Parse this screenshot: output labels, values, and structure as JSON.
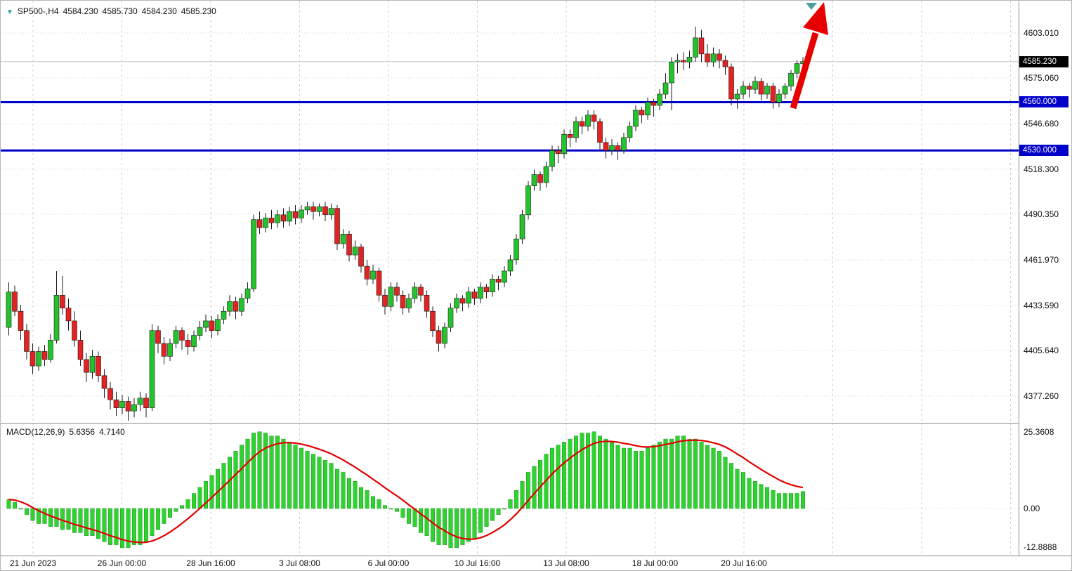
{
  "header": {
    "symbol": "SP500-,H4",
    "open": "4584.230",
    "high": "4585.730",
    "low": "4584.230",
    "close": "4585.230"
  },
  "price_scale": {
    "tick_labels": [
      "4603.010",
      "4575.060",
      "4546.680",
      "4518.300",
      "4490.350",
      "4461.970",
      "4433.590",
      "4405.640",
      "4377.260"
    ],
    "current_price_label": "4585.230",
    "level_labels": [
      "4560.000",
      "4530.000"
    ]
  },
  "macd_panel": {
    "label": "MACD(12,26,9)",
    "macd_value": "5.6356",
    "signal_value": "4.7140",
    "scale_ticks": [
      "25.3608",
      "0.00",
      "-12.8888"
    ]
  },
  "time_axis": {
    "labels": [
      "21 Jun 2023",
      "26 Jun 00:00",
      "28 Jun 16:00",
      "3 Jul 08:00",
      "6 Jul 00:00",
      "10 Jul 16:00",
      "13 Jul 08:00",
      "18 Jul 00:00",
      "20 Jul 16:00"
    ]
  },
  "colors": {
    "bull": "#25c32b",
    "bear": "#e32222",
    "candle_outline": "#1a1a1a",
    "macd_hist": "#2fd32f",
    "macd_hist_outline": "#1d9422",
    "signal_line": "#e00000",
    "level_line": "#0000c8",
    "level_box_bg": "#0000c8",
    "current_box_bg": "#000000",
    "arrow": "#e60000",
    "marker_triangle": "#4aa0a0",
    "grid": "#cfcfcf",
    "current_price_line": "#c8c8c8"
  },
  "chart_data": {
    "type": "candlestick",
    "title": "SP500-,H4",
    "ohlc_display": [
      4584.23,
      4585.73,
      4584.23,
      4585.23
    ],
    "x_labels": [
      "21 Jun 2023",
      "26 Jun 00:00",
      "28 Jun 16:00",
      "3 Jul 08:00",
      "6 Jul 00:00",
      "10 Jul 16:00",
      "13 Jul 08:00",
      "18 Jul 00:00",
      "20 Jul 16:00"
    ],
    "y_ticks": [
      4603.01,
      4575.06,
      4546.68,
      4518.3,
      4490.35,
      4461.97,
      4433.59,
      4405.64,
      4377.26
    ],
    "levels": [
      4560.0,
      4530.0
    ],
    "current_price": 4585.23,
    "candles_ohlc": [
      [
        4420,
        4448,
        4415,
        4442
      ],
      [
        4442,
        4446,
        4427,
        4430
      ],
      [
        4430,
        4434,
        4412,
        4418
      ],
      [
        4418,
        4422,
        4400,
        4405
      ],
      [
        4405,
        4410,
        4391,
        4396
      ],
      [
        4396,
        4408,
        4393,
        4405
      ],
      [
        4405,
        4409,
        4396,
        4400
      ],
      [
        4400,
        4416,
        4398,
        4412
      ],
      [
        4412,
        4455,
        4410,
        4440
      ],
      [
        4440,
        4452,
        4428,
        4432
      ],
      [
        4432,
        4438,
        4418,
        4424
      ],
      [
        4424,
        4430,
        4408,
        4412
      ],
      [
        4412,
        4418,
        4396,
        4400
      ],
      [
        4400,
        4404,
        4386,
        4392
      ],
      [
        4392,
        4406,
        4388,
        4402
      ],
      [
        4402,
        4405,
        4386,
        4390
      ],
      [
        4390,
        4394,
        4376,
        4382
      ],
      [
        4382,
        4386,
        4369,
        4375
      ],
      [
        4375,
        4380,
        4365,
        4370
      ],
      [
        4370,
        4378,
        4366,
        4374
      ],
      [
        4374,
        4377,
        4362,
        4368
      ],
      [
        4368,
        4376,
        4364,
        4372
      ],
      [
        4372,
        4380,
        4368,
        4376
      ],
      [
        4376,
        4379,
        4364,
        4370
      ],
      [
        4370,
        4422,
        4368,
        4418
      ],
      [
        4418,
        4421,
        4404,
        4410
      ],
      [
        4410,
        4414,
        4397,
        4402
      ],
      [
        4402,
        4413,
        4399,
        4410
      ],
      [
        4410,
        4421,
        4407,
        4418
      ],
      [
        4418,
        4420,
        4406,
        4412
      ],
      [
        4412,
        4416,
        4403,
        4408
      ],
      [
        4408,
        4418,
        4405,
        4415
      ],
      [
        4415,
        4424,
        4412,
        4420
      ],
      [
        4420,
        4428,
        4417,
        4424
      ],
      [
        4424,
        4427,
        4413,
        4418
      ],
      [
        4418,
        4428,
        4415,
        4425
      ],
      [
        4425,
        4433,
        4422,
        4430
      ],
      [
        4430,
        4440,
        4427,
        4436
      ],
      [
        4436,
        4439,
        4425,
        4430
      ],
      [
        4430,
        4441,
        4427,
        4438
      ],
      [
        4438,
        4448,
        4435,
        4444
      ],
      [
        4444,
        4490,
        4442,
        4487
      ],
      [
        4487,
        4492,
        4478,
        4482
      ],
      [
        4482,
        4491,
        4479,
        4488
      ],
      [
        4488,
        4493,
        4481,
        4485
      ],
      [
        4485,
        4493,
        4482,
        4490
      ],
      [
        4490,
        4494,
        4482,
        4486
      ],
      [
        4486,
        4495,
        4483,
        4492
      ],
      [
        4492,
        4496,
        4484,
        4488
      ],
      [
        4488,
        4496,
        4485,
        4493
      ],
      [
        4493,
        4498,
        4490,
        4495
      ],
      [
        4495,
        4498,
        4487,
        4492
      ],
      [
        4492,
        4497,
        4489,
        4495
      ],
      [
        4495,
        4498,
        4486,
        4490
      ],
      [
        4490,
        4497,
        4487,
        4494
      ],
      [
        4494,
        4496,
        4468,
        4472
      ],
      [
        4472,
        4481,
        4469,
        4478
      ],
      [
        4478,
        4480,
        4461,
        4465
      ],
      [
        4465,
        4474,
        4462,
        4470
      ],
      [
        4470,
        4472,
        4454,
        4458
      ],
      [
        4458,
        4462,
        4446,
        4450
      ],
      [
        4450,
        4459,
        4447,
        4455
      ],
      [
        4455,
        4457,
        4436,
        4440
      ],
      [
        4440,
        4444,
        4428,
        4433
      ],
      [
        4433,
        4448,
        4430,
        4445
      ],
      [
        4445,
        4448,
        4436,
        4440
      ],
      [
        4440,
        4443,
        4428,
        4432
      ],
      [
        4432,
        4441,
        4429,
        4438
      ],
      [
        4438,
        4448,
        4435,
        4445
      ],
      [
        4445,
        4447,
        4436,
        4440
      ],
      [
        4440,
        4443,
        4426,
        4430
      ],
      [
        4430,
        4433,
        4414,
        4418
      ],
      [
        4418,
        4421,
        4405,
        4410
      ],
      [
        4410,
        4423,
        4407,
        4420
      ],
      [
        4420,
        4435,
        4417,
        4432
      ],
      [
        4432,
        4441,
        4429,
        4438
      ],
      [
        4438,
        4440,
        4430,
        4435
      ],
      [
        4435,
        4445,
        4432,
        4442
      ],
      [
        4442,
        4444,
        4434,
        4438
      ],
      [
        4438,
        4448,
        4435,
        4445
      ],
      [
        4445,
        4447,
        4438,
        4442
      ],
      [
        4442,
        4453,
        4439,
        4450
      ],
      [
        4450,
        4452,
        4443,
        4448
      ],
      [
        4448,
        4458,
        4445,
        4455
      ],
      [
        4455,
        4465,
        4452,
        4462
      ],
      [
        4462,
        4478,
        4459,
        4475
      ],
      [
        4475,
        4493,
        4472,
        4490
      ],
      [
        4490,
        4511,
        4487,
        4508
      ],
      [
        4508,
        4518,
        4505,
        4515
      ],
      [
        4515,
        4517,
        4505,
        4510
      ],
      [
        4510,
        4523,
        4507,
        4520
      ],
      [
        4520,
        4533,
        4517,
        4530
      ],
      [
        4530,
        4533,
        4522,
        4528
      ],
      [
        4528,
        4543,
        4525,
        4540
      ],
      [
        4540,
        4543,
        4532,
        4538
      ],
      [
        4538,
        4551,
        4535,
        4548
      ],
      [
        4548,
        4551,
        4540,
        4545
      ],
      [
        4545,
        4555,
        4542,
        4552
      ],
      [
        4552,
        4555,
        4543,
        4548
      ],
      [
        4548,
        4550,
        4530,
        4535
      ],
      [
        4535,
        4538,
        4525,
        4530
      ],
      [
        4530,
        4537,
        4527,
        4533
      ],
      [
        4533,
        4535,
        4524,
        4530
      ],
      [
        4530,
        4541,
        4528,
        4538
      ],
      [
        4538,
        4548,
        4535,
        4545
      ],
      [
        4545,
        4558,
        4542,
        4555
      ],
      [
        4555,
        4557,
        4547,
        4552
      ],
      [
        4552,
        4563,
        4549,
        4560
      ],
      [
        4560,
        4562,
        4551,
        4558
      ],
      [
        4558,
        4568,
        4555,
        4565
      ],
      [
        4565,
        4578,
        4562,
        4572
      ],
      [
        4572,
        4588,
        4555,
        4585
      ],
      [
        4585,
        4590,
        4578,
        4586
      ],
      [
        4586,
        4591,
        4580,
        4585
      ],
      [
        4585,
        4592,
        4581,
        4588
      ],
      [
        4588,
        4607,
        4585,
        4600
      ],
      [
        4600,
        4605,
        4585,
        4590
      ],
      [
        4590,
        4596,
        4582,
        4585
      ],
      [
        4585,
        4594,
        4582,
        4590
      ],
      [
        4590,
        4593,
        4581,
        4586
      ],
      [
        4586,
        4589,
        4577,
        4582
      ],
      [
        4582,
        4584,
        4558,
        4562
      ],
      [
        4562,
        4568,
        4556,
        4565
      ],
      [
        4565,
        4573,
        4562,
        4570
      ],
      [
        4570,
        4572,
        4563,
        4568
      ],
      [
        4568,
        4576,
        4565,
        4573
      ],
      [
        4573,
        4575,
        4561,
        4565
      ],
      [
        4565,
        4572,
        4562,
        4570
      ],
      [
        4570,
        4572,
        4556,
        4560
      ],
      [
        4560,
        4568,
        4557,
        4565
      ],
      [
        4565,
        4572,
        4562,
        4570
      ],
      [
        4570,
        4580,
        4567,
        4578
      ],
      [
        4578,
        4586,
        4575,
        4584
      ],
      [
        4584,
        4588,
        4581,
        4585.2
      ]
    ],
    "macd": {
      "params": [
        12,
        26,
        9
      ],
      "current_macd": 5.6356,
      "current_signal": 4.714,
      "y_ticks": [
        25.3608,
        0.0,
        -12.8888
      ],
      "histogram": [
        3,
        2,
        0,
        -2,
        -4,
        -5,
        -5,
        -6,
        -6,
        -7,
        -7,
        -8,
        -8,
        -9,
        -9,
        -10,
        -11,
        -12,
        -12,
        -13,
        -13,
        -12,
        -12,
        -11,
        -9,
        -7,
        -5,
        -3,
        -1,
        1,
        3,
        5,
        7,
        9,
        11,
        13,
        15,
        17,
        19,
        21,
        23,
        25,
        25.4,
        25,
        24,
        24,
        23,
        22,
        21,
        20,
        19,
        18,
        17,
        16,
        15,
        13,
        12,
        10,
        9,
        7,
        6,
        4,
        3,
        1,
        0,
        -1,
        -3,
        -5,
        -6,
        -8,
        -9,
        -11,
        -12,
        -12,
        -13,
        -13,
        -12,
        -11,
        -10,
        -8,
        -6,
        -4,
        -2,
        0,
        3,
        6,
        9,
        12,
        14,
        16,
        18,
        20,
        21,
        22,
        23,
        24,
        25,
        25,
        25.4,
        24,
        23,
        22,
        21,
        20,
        20,
        19,
        19,
        20,
        21,
        22,
        23,
        23,
        24,
        24,
        23,
        23,
        22,
        21,
        20,
        19,
        17,
        15,
        13,
        12,
        10,
        9,
        8,
        7,
        6,
        5,
        5,
        5,
        5,
        5.6356
      ]
    }
  }
}
